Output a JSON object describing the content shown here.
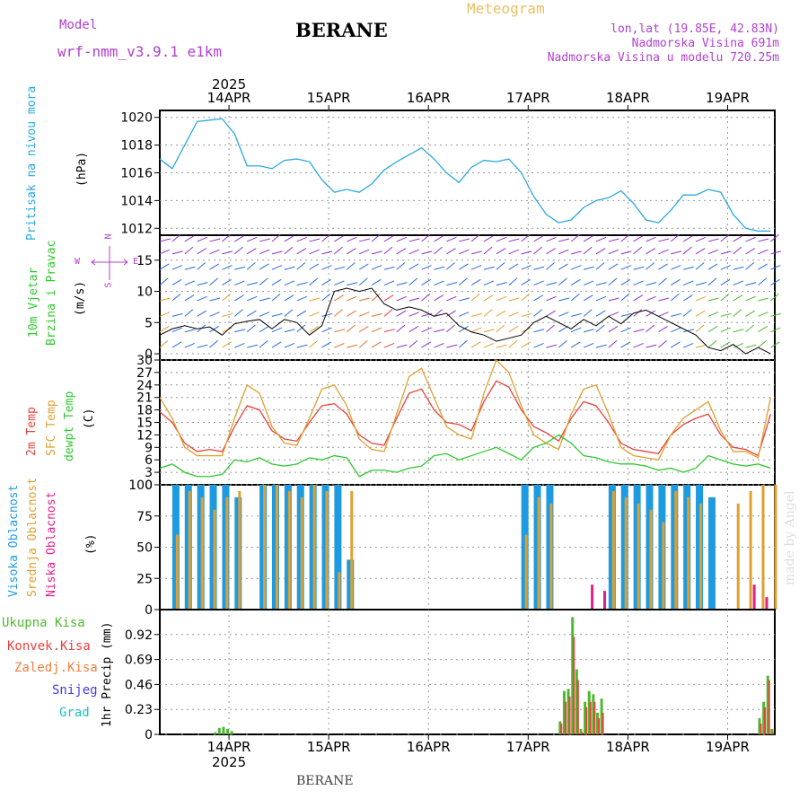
{
  "header": {
    "model_label": "Model",
    "model_name": "wrf-nmm_v3.9.1  e1km",
    "title": "BERANE",
    "meteogram": "Meteogram",
    "lonlat": "lon,lat (19.85E, 42.83N)",
    "elev": "Nadmorska Visina 691m",
    "elev_model": "Nadmorska Visina u modelu 720.25m"
  },
  "footer": {
    "station": "BERANE",
    "credit": "made by Angel"
  },
  "axes": {
    "year": "2025",
    "days": [
      "14APR",
      "15APR",
      "16APR",
      "17APR",
      "18APR",
      "19APR"
    ]
  },
  "labels": {
    "pressure_name": "Pritisak na nivou mora",
    "pressure_unit": "(hPa)",
    "wind_name1": "10m Vjetar",
    "wind_name2": "Brzina i Pravac",
    "wind_unit": "(m/s)",
    "compass_n": "N",
    "compass_w": "W",
    "compass_e": "E",
    "compass_s": "S",
    "temp_2m": "2m Temp",
    "temp_sfc": "SFC Temp",
    "temp_dew": "dewpt Temp",
    "temp_unit": "(C)",
    "cloud_high": "Visoka Oblacnost",
    "cloud_mid": "Srednja Oblacnost",
    "cloud_low": "Niska Oblacnost",
    "cloud_unit": "(%)",
    "precip_total": "Ukupna Kisa",
    "precip_conv": "Konvek.Kisa",
    "precip_frz": "Zaledj.Kisa",
    "precip_snow": "Snijeg",
    "precip_hail": "Grad",
    "precip_axis": "1hr Precip (mm)"
  },
  "colors": {
    "pressure": "#29a8e0",
    "temp2m": "#e8413c",
    "sfc": "#e0a030",
    "dew": "#2ec82e",
    "cloud_high": "#1e9be0",
    "cloud_mid": "#e0a030",
    "cloud_low": "#e0208a",
    "precip_total": "#4fb832",
    "precip_conv": "#e8413c",
    "precip_frz": "#f08040",
    "precip_snow": "#4040e0",
    "precip_hail": "#20c0c0",
    "model": "#b040d0"
  },
  "chart_data": [
    {
      "type": "line",
      "panel": "pressure",
      "ylabel": "(hPa)",
      "ylim": [
        1011.5,
        1020.5
      ],
      "yticks": [
        1012,
        1014,
        1016,
        1018,
        1020
      ],
      "x_hours": [
        0,
        3,
        6,
        9,
        12,
        15,
        18,
        21,
        24,
        27,
        30,
        33,
        36,
        39,
        42,
        45,
        48,
        51,
        54,
        57,
        60,
        63,
        66,
        69,
        72,
        75,
        78,
        81,
        84,
        87,
        90,
        93,
        96,
        99,
        102,
        105,
        108,
        111,
        114,
        117,
        120,
        123,
        126,
        129,
        132,
        135,
        138,
        141,
        144,
        147
      ],
      "series": [
        {
          "name": "Pritisak na nivou mora",
          "values": [
            1017.0,
            1016.3,
            1018.0,
            1019.7,
            1019.8,
            1019.9,
            1018.8,
            1016.5,
            1016.5,
            1016.3,
            1016.9,
            1017.0,
            1016.8,
            1015.5,
            1014.6,
            1014.8,
            1014.6,
            1015.2,
            1016.2,
            1016.8,
            1017.3,
            1017.8,
            1017.0,
            1016.0,
            1015.3,
            1016.4,
            1016.9,
            1016.8,
            1017.0,
            1016.0,
            1014.3,
            1013.0,
            1012.4,
            1012.6,
            1013.5,
            1014.0,
            1014.2,
            1014.7,
            1013.8,
            1012.6,
            1012.4,
            1013.3,
            1014.4,
            1014.4,
            1014.8,
            1014.6,
            1013.0,
            1012.0,
            1011.8,
            1011.8
          ]
        }
      ]
    },
    {
      "type": "line",
      "panel": "wind",
      "ylabel": "(m/s)",
      "ylim": [
        -1,
        19
      ],
      "yticks": [
        0,
        5,
        10,
        15
      ],
      "x_hours": [
        0,
        3,
        6,
        9,
        12,
        15,
        18,
        21,
        24,
        27,
        30,
        33,
        36,
        39,
        42,
        45,
        48,
        51,
        54,
        57,
        60,
        63,
        66,
        69,
        72,
        75,
        78,
        81,
        84,
        87,
        90,
        93,
        96,
        99,
        102,
        105,
        108,
        111,
        114,
        117,
        120,
        123,
        126,
        129,
        132,
        135,
        138,
        141,
        144,
        147
      ],
      "series": [
        {
          "name": "10m Vjetar",
          "values": [
            3.0,
            4.0,
            4.5,
            4.0,
            4.3,
            3.0,
            4.8,
            5.2,
            5.5,
            4.0,
            5.5,
            5.0,
            3.0,
            4.5,
            10.0,
            10.5,
            10.0,
            10.5,
            8.0,
            7.0,
            7.5,
            7.0,
            6.0,
            6.5,
            4.5,
            3.5,
            3.0,
            2.0,
            2.5,
            3.0,
            5.0,
            6.0,
            5.0,
            4.0,
            5.5,
            4.5,
            6.0,
            4.8,
            6.5,
            7.0,
            6.0,
            5.0,
            4.0,
            3.0,
            1.0,
            0.5,
            1.5,
            0.0,
            1.0,
            0.0
          ]
        }
      ]
    },
    {
      "type": "line",
      "panel": "temperature",
      "ylabel": "(C)",
      "ylim": [
        0,
        30
      ],
      "yticks": [
        0,
        3,
        6,
        9,
        12,
        15,
        18,
        21,
        24,
        27,
        30
      ],
      "x_hours": [
        0,
        3,
        6,
        9,
        12,
        15,
        18,
        21,
        24,
        27,
        30,
        33,
        36,
        39,
        42,
        45,
        48,
        51,
        54,
        57,
        60,
        63,
        66,
        69,
        72,
        75,
        78,
        81,
        84,
        87,
        90,
        93,
        96,
        99,
        102,
        105,
        108,
        111,
        114,
        117,
        120,
        123,
        126,
        129,
        132,
        135,
        138,
        141,
        144,
        147
      ],
      "series": [
        {
          "name": "2m Temp",
          "values": [
            17.5,
            15.0,
            10.0,
            8.0,
            8.5,
            8.0,
            14.0,
            19.0,
            18.0,
            13.0,
            11.0,
            10.5,
            15.0,
            19.0,
            19.5,
            17.0,
            12.0,
            10.0,
            9.5,
            16.0,
            22.0,
            23.0,
            18.0,
            15.0,
            14.5,
            13.0,
            20.0,
            25.0,
            23.5,
            18.0,
            14.0,
            12.5,
            10.5,
            16.0,
            20.0,
            19.0,
            15.0,
            10.0,
            8.5,
            8.0,
            7.5,
            12.0,
            14.5,
            16.0,
            17.0,
            12.0,
            9.0,
            8.5,
            7.0,
            17.0
          ]
        },
        {
          "name": "SFC Temp",
          "values": [
            21.0,
            16.0,
            9.0,
            7.0,
            7.0,
            7.0,
            16.0,
            24.0,
            22.0,
            14.0,
            10.0,
            9.5,
            16.0,
            23.0,
            24.0,
            19.0,
            11.0,
            8.5,
            8.0,
            17.0,
            26.0,
            28.0,
            21.0,
            14.0,
            12.0,
            11.0,
            22.0,
            30.0,
            27.0,
            19.0,
            12.0,
            10.0,
            8.5,
            17.0,
            23.0,
            24.0,
            17.0,
            9.0,
            7.0,
            6.5,
            6.0,
            12.0,
            16.0,
            18.0,
            20.0,
            13.0,
            8.0,
            8.0,
            6.5,
            21.0
          ]
        },
        {
          "name": "dewpt Temp",
          "values": [
            4.0,
            5.0,
            3.0,
            2.0,
            2.0,
            2.5,
            6.0,
            5.5,
            6.5,
            5.0,
            4.5,
            5.0,
            6.5,
            6.0,
            7.0,
            6.5,
            2.0,
            3.5,
            3.5,
            3.0,
            4.0,
            4.5,
            7.0,
            7.5,
            6.0,
            7.0,
            8.0,
            9.0,
            7.5,
            6.0,
            9.0,
            10.0,
            12.0,
            10.0,
            7.0,
            6.5,
            5.5,
            5.0,
            5.0,
            4.5,
            3.5,
            4.0,
            3.0,
            4.0,
            7.0,
            6.0,
            5.0,
            4.5,
            5.0,
            4.0
          ]
        }
      ]
    },
    {
      "type": "bar",
      "panel": "cloud",
      "ylabel": "(%)",
      "ylim": [
        0,
        100
      ],
      "yticks": [
        0,
        25,
        50,
        75,
        100
      ],
      "x_hours": [
        0,
        3,
        6,
        9,
        12,
        15,
        18,
        21,
        24,
        27,
        30,
        33,
        36,
        39,
        42,
        45,
        48,
        51,
        54,
        57,
        60,
        63,
        66,
        69,
        72,
        75,
        78,
        81,
        84,
        87,
        90,
        93,
        96,
        99,
        102,
        105,
        108,
        111,
        114,
        117,
        120,
        123,
        126,
        129,
        132,
        135,
        138,
        141,
        144,
        147
      ],
      "series": [
        {
          "name": "Visoka Oblacnost",
          "values": [
            0,
            100,
            100,
            100,
            100,
            100,
            90,
            0,
            100,
            100,
            100,
            100,
            100,
            100,
            100,
            40,
            0,
            0,
            0,
            0,
            0,
            0,
            0,
            0,
            0,
            0,
            0,
            0,
            0,
            100,
            100,
            100,
            0,
            0,
            0,
            0,
            100,
            100,
            100,
            100,
            100,
            100,
            100,
            100,
            90,
            0,
            0,
            0,
            0,
            0
          ]
        },
        {
          "name": "Srednja Oblacnost",
          "values": [
            0,
            60,
            95,
            90,
            80,
            90,
            95,
            0,
            100,
            100,
            95,
            90,
            100,
            95,
            30,
            95,
            0,
            0,
            0,
            0,
            0,
            0,
            0,
            0,
            0,
            0,
            0,
            0,
            0,
            60,
            90,
            85,
            0,
            0,
            0,
            0,
            95,
            90,
            85,
            80,
            70,
            95,
            90,
            85,
            0,
            0,
            85,
            95,
            100,
            100
          ]
        },
        {
          "name": "Niska Oblacnost",
          "values": [
            0,
            0,
            0,
            0,
            0,
            0,
            0,
            0,
            0,
            0,
            0,
            0,
            0,
            0,
            0,
            0,
            0,
            0,
            0,
            0,
            0,
            0,
            0,
            0,
            0,
            0,
            0,
            0,
            0,
            0,
            0,
            0,
            0,
            0,
            20,
            15,
            0,
            0,
            0,
            0,
            0,
            0,
            0,
            0,
            0,
            0,
            0,
            20,
            10,
            0
          ]
        }
      ]
    },
    {
      "type": "bar",
      "panel": "precipitation",
      "ylabel": "1hr Precip (mm)",
      "ylim": [
        0,
        1.15
      ],
      "yticks": [
        0,
        0.23,
        0.46,
        0.69,
        0.92
      ],
      "x_hours": [
        13,
        14,
        15,
        16,
        17,
        96,
        97,
        98,
        99,
        100,
        101,
        102,
        103,
        104,
        105,
        106,
        107,
        108,
        109,
        110,
        111,
        144,
        145,
        146,
        147
      ],
      "series": [
        {
          "name": "Ukupna Kisa",
          "values": [
            0.02,
            0.06,
            0.07,
            0.05,
            0.03,
            0.12,
            0.4,
            0.42,
            1.08,
            0.6,
            0.05,
            0.3,
            0.4,
            0.37,
            0.2,
            0.33,
            0.0,
            0.0,
            0.0,
            0.0,
            0.0,
            0.15,
            0.3,
            0.54,
            0.05
          ]
        },
        {
          "name": "Konvek.Kisa",
          "values": [
            0.0,
            0.0,
            0.0,
            0.0,
            0.0,
            0.1,
            0.3,
            0.35,
            0.9,
            0.5,
            0.02,
            0.25,
            0.3,
            0.3,
            0.15,
            0.2,
            0.0,
            0.0,
            0.0,
            0.0,
            0.0,
            0.1,
            0.25,
            0.5,
            0.02
          ]
        }
      ]
    }
  ]
}
